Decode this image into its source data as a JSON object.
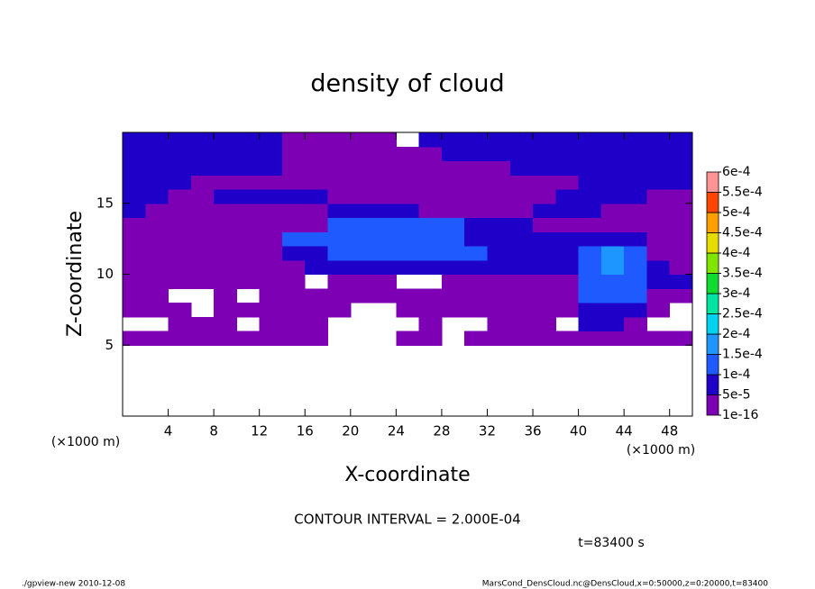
{
  "chart_data": {
    "type": "contour",
    "title": "density of cloud",
    "xlabel": "X-coordinate",
    "ylabel": "Z-coordinate",
    "x_unit": "(×1000 m)",
    "y_unit": "(×1000 m)",
    "xlim": [
      0,
      50
    ],
    "ylim": [
      0,
      20
    ],
    "xticks": [
      4,
      8,
      12,
      16,
      20,
      24,
      28,
      32,
      36,
      40,
      44,
      48
    ],
    "yticks": [
      5,
      10,
      15
    ],
    "x": [
      1,
      3,
      5,
      7,
      9,
      11,
      13,
      15,
      17,
      19,
      21,
      23,
      25,
      27,
      29,
      31,
      33,
      35,
      37,
      39,
      41,
      43,
      45,
      47,
      49
    ],
    "y": [
      5.5,
      6.5,
      7.5,
      8.5,
      9.5,
      10.5,
      11.5,
      12.5,
      13.5,
      14.5,
      15.5,
      16.5,
      17.5,
      18.5,
      19.5
    ],
    "z": [
      [
        3e-05,
        3e-05,
        3e-05,
        3e-05,
        3e-05,
        3e-05,
        3e-05,
        3e-05,
        3e-05,
        null,
        null,
        null,
        3e-05,
        3e-05,
        null,
        3e-05,
        3e-05,
        3e-05,
        3e-05,
        3e-05,
        3e-05,
        3e-05,
        3e-05,
        3e-05,
        3e-05
      ],
      [
        null,
        null,
        3e-05,
        3e-05,
        3e-05,
        null,
        3e-05,
        3e-05,
        3e-05,
        null,
        null,
        null,
        null,
        3e-05,
        null,
        null,
        3e-05,
        3e-05,
        3e-05,
        null,
        7e-05,
        7e-05,
        3e-05,
        null,
        null
      ],
      [
        3e-05,
        3e-05,
        3e-05,
        null,
        3e-05,
        3e-05,
        3e-05,
        3e-05,
        3e-05,
        3e-05,
        null,
        null,
        3e-05,
        3e-05,
        3e-05,
        3e-05,
        3e-05,
        3e-05,
        3e-05,
        3e-05,
        7e-05,
        7e-05,
        7e-05,
        3e-05,
        null
      ],
      [
        3e-05,
        3e-05,
        null,
        null,
        3e-05,
        null,
        3e-05,
        3e-05,
        3e-05,
        3e-05,
        3e-05,
        3e-05,
        3e-05,
        3e-05,
        3e-05,
        3e-05,
        3e-05,
        3e-05,
        3e-05,
        3e-05,
        0.00012,
        0.00012,
        0.00012,
        3e-05,
        3e-05
      ],
      [
        3e-05,
        3e-05,
        3e-05,
        3e-05,
        3e-05,
        3e-05,
        3e-05,
        3e-05,
        null,
        3e-05,
        3e-05,
        3e-05,
        null,
        null,
        3e-05,
        3e-05,
        3e-05,
        3e-05,
        3e-05,
        3e-05,
        0.00012,
        0.00012,
        0.00012,
        7e-05,
        7e-05
      ],
      [
        3e-05,
        3e-05,
        3e-05,
        3e-05,
        3e-05,
        3e-05,
        3e-05,
        3e-05,
        7e-05,
        7e-05,
        7e-05,
        7e-05,
        7e-05,
        7e-05,
        7e-05,
        7e-05,
        7e-05,
        7e-05,
        7e-05,
        7e-05,
        0.00012,
        0.00017,
        0.00012,
        7e-05,
        3e-05
      ],
      [
        3e-05,
        3e-05,
        3e-05,
        3e-05,
        3e-05,
        3e-05,
        3e-05,
        7e-05,
        7e-05,
        0.00012,
        0.00012,
        0.00012,
        0.00012,
        0.00012,
        0.00012,
        0.00012,
        7e-05,
        7e-05,
        7e-05,
        7e-05,
        0.00012,
        0.00017,
        0.00012,
        3e-05,
        3e-05
      ],
      [
        3e-05,
        3e-05,
        3e-05,
        3e-05,
        3e-05,
        3e-05,
        3e-05,
        0.00012,
        0.00012,
        0.00012,
        0.00012,
        0.00012,
        0.00012,
        0.00012,
        0.00012,
        7e-05,
        7e-05,
        7e-05,
        7e-05,
        7e-05,
        7e-05,
        7e-05,
        7e-05,
        3e-05,
        3e-05
      ],
      [
        3e-05,
        3e-05,
        3e-05,
        3e-05,
        3e-05,
        3e-05,
        3e-05,
        3e-05,
        3e-05,
        0.00012,
        0.00012,
        0.00012,
        0.00012,
        0.00012,
        0.00012,
        7e-05,
        7e-05,
        7e-05,
        3e-05,
        3e-05,
        3e-05,
        3e-05,
        3e-05,
        3e-05,
        3e-05
      ],
      [
        7e-05,
        3e-05,
        3e-05,
        3e-05,
        3e-05,
        3e-05,
        3e-05,
        3e-05,
        3e-05,
        7e-05,
        7e-05,
        7e-05,
        7e-05,
        3e-05,
        3e-05,
        3e-05,
        3e-05,
        3e-05,
        7e-05,
        7e-05,
        7e-05,
        3e-05,
        3e-05,
        3e-05,
        3e-05
      ],
      [
        7e-05,
        7e-05,
        3e-05,
        3e-05,
        7e-05,
        7e-05,
        7e-05,
        7e-05,
        7e-05,
        3e-05,
        3e-05,
        3e-05,
        3e-05,
        3e-05,
        3e-05,
        3e-05,
        3e-05,
        3e-05,
        3e-05,
        7e-05,
        7e-05,
        7e-05,
        7e-05,
        3e-05,
        3e-05
      ],
      [
        7e-05,
        7e-05,
        7e-05,
        3e-05,
        3e-05,
        3e-05,
        3e-05,
        3e-05,
        3e-05,
        3e-05,
        3e-05,
        3e-05,
        3e-05,
        3e-05,
        3e-05,
        3e-05,
        3e-05,
        3e-05,
        3e-05,
        3e-05,
        7e-05,
        7e-05,
        7e-05,
        7e-05,
        7e-05
      ],
      [
        7e-05,
        7e-05,
        7e-05,
        7e-05,
        7e-05,
        7e-05,
        7e-05,
        3e-05,
        3e-05,
        3e-05,
        3e-05,
        3e-05,
        3e-05,
        3e-05,
        3e-05,
        3e-05,
        3e-05,
        7e-05,
        7e-05,
        7e-05,
        7e-05,
        7e-05,
        7e-05,
        7e-05,
        7e-05
      ],
      [
        7e-05,
        7e-05,
        7e-05,
        7e-05,
        7e-05,
        7e-05,
        7e-05,
        3e-05,
        3e-05,
        3e-05,
        3e-05,
        3e-05,
        3e-05,
        3e-05,
        7e-05,
        7e-05,
        7e-05,
        7e-05,
        7e-05,
        7e-05,
        7e-05,
        7e-05,
        7e-05,
        7e-05,
        7e-05
      ],
      [
        7e-05,
        7e-05,
        7e-05,
        7e-05,
        7e-05,
        7e-05,
        7e-05,
        3e-05,
        3e-05,
        3e-05,
        3e-05,
        3e-05,
        null,
        7e-05,
        7e-05,
        7e-05,
        7e-05,
        7e-05,
        7e-05,
        7e-05,
        7e-05,
        7e-05,
        7e-05,
        7e-05,
        7e-05
      ]
    ],
    "levels": [
      {
        "value": 1e-16,
        "label": "1e-16"
      },
      {
        "value": 5e-05,
        "label": "5e-5"
      },
      {
        "value": 0.0001,
        "label": "1e-4"
      },
      {
        "value": 0.00015,
        "label": "1.5e-4"
      },
      {
        "value": 0.0002,
        "label": "2e-4"
      },
      {
        "value": 0.00025,
        "label": "2.5e-4"
      },
      {
        "value": 0.0003,
        "label": "3e-4"
      },
      {
        "value": 0.00035,
        "label": "3.5e-4"
      },
      {
        "value": 0.0004,
        "label": "4e-4"
      },
      {
        "value": 0.00045,
        "label": "4.5e-4"
      },
      {
        "value": 0.0005,
        "label": "5e-4"
      },
      {
        "value": 0.00055,
        "label": "5.5e-4"
      },
      {
        "value": 0.0006,
        "label": "6e-4"
      }
    ],
    "colors": [
      "#7d00b4",
      "#1e00c8",
      "#1e5aff",
      "#1e96ff",
      "#00d2f0",
      "#00e6a0",
      "#10dc30",
      "#80e600",
      "#e6dc00",
      "#ffa000",
      "#ff4600",
      "#ff9494"
    ],
    "contour_interval": "CONTOUR INTERVAL = 2.000E-04",
    "time_label": "t=83400 s",
    "footer_left": "./gpview-new   2010-12-08",
    "footer_right": "MarsCond_DensCloud.nc@DensCloud,x=0:50000,z=0:20000,t=83400"
  }
}
